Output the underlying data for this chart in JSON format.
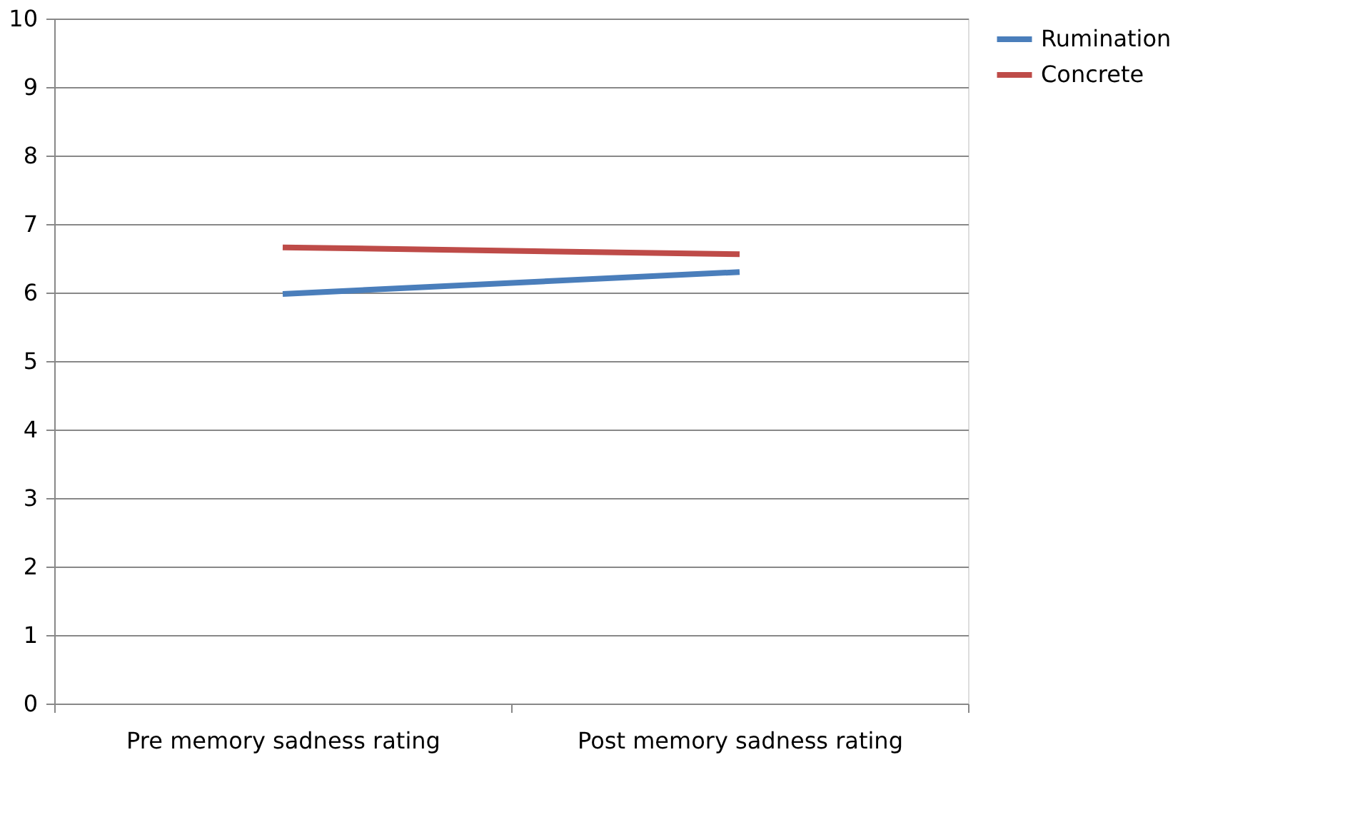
{
  "chart_data": {
    "type": "line",
    "categories": [
      "Pre memory sadness rating",
      "Post memory sadness rating"
    ],
    "series": [
      {
        "name": "Rumination",
        "color": "#4a7ebb",
        "values": [
          5.98,
          6.3
        ]
      },
      {
        "name": "Concrete",
        "color": "#be4b48",
        "values": [
          6.66,
          6.56
        ]
      }
    ],
    "ylim": [
      0,
      10
    ],
    "yticks": [
      0,
      1,
      2,
      3,
      4,
      5,
      6,
      7,
      8,
      9,
      10
    ],
    "grid": "y",
    "legend": "right",
    "marker": "none",
    "line_style": "solid"
  }
}
